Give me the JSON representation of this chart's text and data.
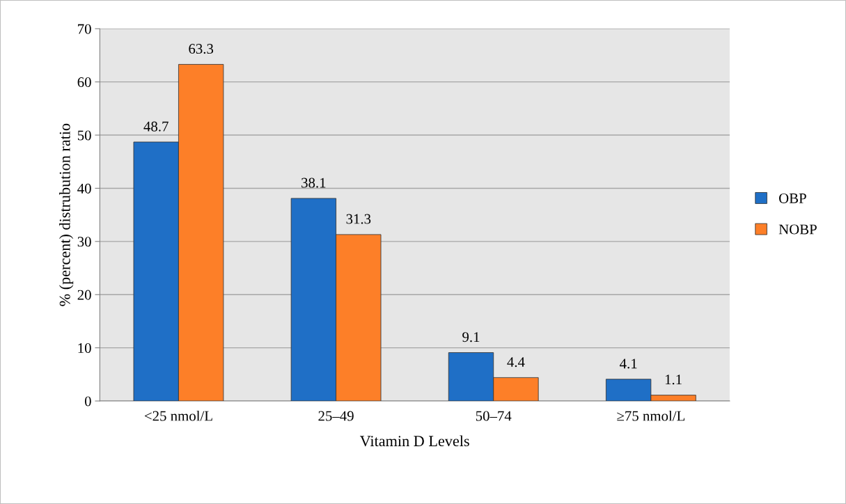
{
  "chart_data": {
    "type": "bar",
    "xlabel": "Vitamin D Levels",
    "ylabel": "% (percent) distrubution ratio",
    "categories": [
      "<25 nmol/L",
      "25–49",
      "50–74",
      "≥75 nmol/L"
    ],
    "series": [
      {
        "name": "OBP",
        "color": "#1f6fc6",
        "values": [
          48.7,
          38.1,
          9.1,
          4.1
        ]
      },
      {
        "name": "NOBP",
        "color": "#fd7f28",
        "values": [
          63.3,
          31.3,
          4.4,
          1.1
        ]
      }
    ],
    "ylim": [
      0,
      70
    ],
    "yticks": [
      0,
      10,
      20,
      30,
      40,
      50,
      60,
      70
    ],
    "grid": "y",
    "legend": "right",
    "data_labels": true
  }
}
